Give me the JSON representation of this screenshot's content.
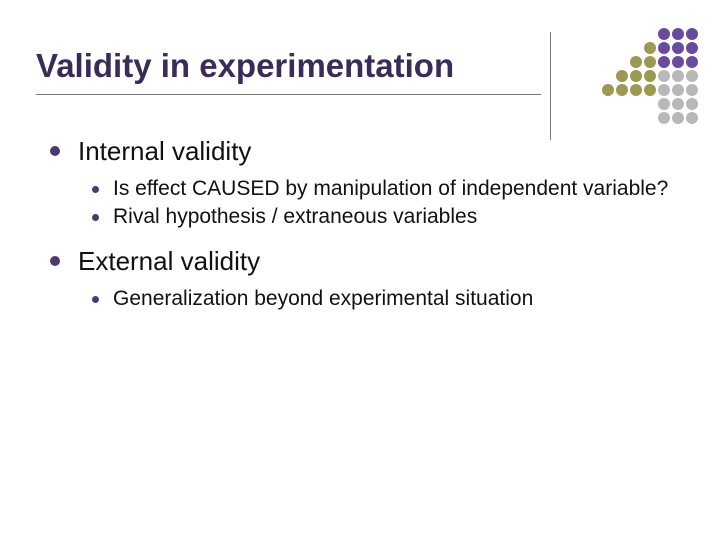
{
  "slide": {
    "title": "Validity in experimentation",
    "title_color": "#3b2b59",
    "title_fontsize": 33,
    "body_font": "Arial",
    "l1_fontsize": 26,
    "l2_fontsize": 21,
    "bullet_color": "#4b3a6e",
    "background_color": "#ffffff",
    "rule_color": "#777777",
    "items": [
      {
        "label": "Internal validity",
        "children": [
          {
            "label": "Is effect CAUSED by manipulation of independent variable?"
          },
          {
            "label": "Rival hypothesis / extraneous variables"
          }
        ]
      },
      {
        "label": "External validity",
        "children": [
          {
            "label": "Generalization beyond experimental situation"
          }
        ]
      }
    ]
  },
  "decor": {
    "grid": [
      7,
      7
    ],
    "colors": {
      "purple": "#6a4a9a",
      "olive": "#9a9a52",
      "grey": "#b8b8b8",
      "none": "transparent"
    },
    "cells": [
      [
        "none",
        "none",
        "none",
        "none",
        "purple",
        "purple",
        "purple"
      ],
      [
        "none",
        "none",
        "none",
        "olive",
        "purple",
        "purple",
        "purple"
      ],
      [
        "none",
        "none",
        "olive",
        "olive",
        "purple",
        "purple",
        "purple"
      ],
      [
        "none",
        "olive",
        "olive",
        "olive",
        "grey",
        "grey",
        "grey"
      ],
      [
        "olive",
        "olive",
        "olive",
        "olive",
        "grey",
        "grey",
        "grey"
      ],
      [
        "none",
        "none",
        "none",
        "none",
        "grey",
        "grey",
        "grey"
      ],
      [
        "none",
        "none",
        "none",
        "none",
        "grey",
        "grey",
        "grey"
      ]
    ]
  }
}
